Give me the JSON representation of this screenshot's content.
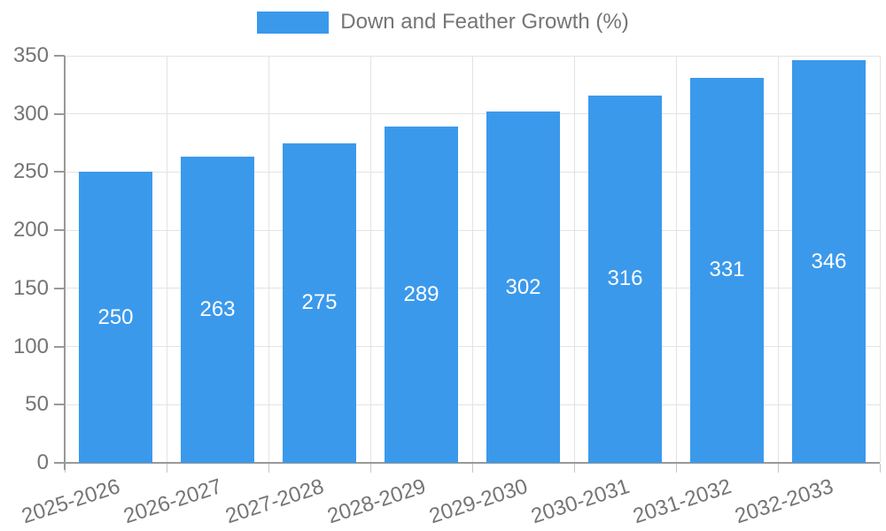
{
  "legend": {
    "label": "Down and Feather Growth (%)"
  },
  "colors": {
    "bar": "#3B99EC",
    "axis": "#999999",
    "grid": "#E3E3E3",
    "tick_label": "#757575",
    "value_label": "#FFFFFF",
    "background": "#FFFFFF"
  },
  "chart_data": {
    "type": "bar",
    "title": "Down and Feather Growth (%)",
    "categories": [
      "2025-2026",
      "2026-2027",
      "2027-2028",
      "2028-2029",
      "2029-2030",
      "2030-2031",
      "2031-2032",
      "2032-2033"
    ],
    "values": [
      250,
      263,
      275,
      289,
      302,
      316,
      331,
      346
    ],
    "value_labels": [
      "250",
      "263",
      "275",
      "289",
      "302",
      "316",
      "331",
      "346"
    ],
    "xlabel": "",
    "ylabel": "",
    "ylim": [
      0,
      350
    ],
    "yticks": [
      0,
      50,
      100,
      150,
      200,
      250,
      300,
      350
    ],
    "ytick_labels": [
      "0",
      "50",
      "100",
      "150",
      "200",
      "250",
      "300",
      "350"
    ],
    "grid": true,
    "legend_position": "top-center",
    "bar_label_position": "center"
  }
}
